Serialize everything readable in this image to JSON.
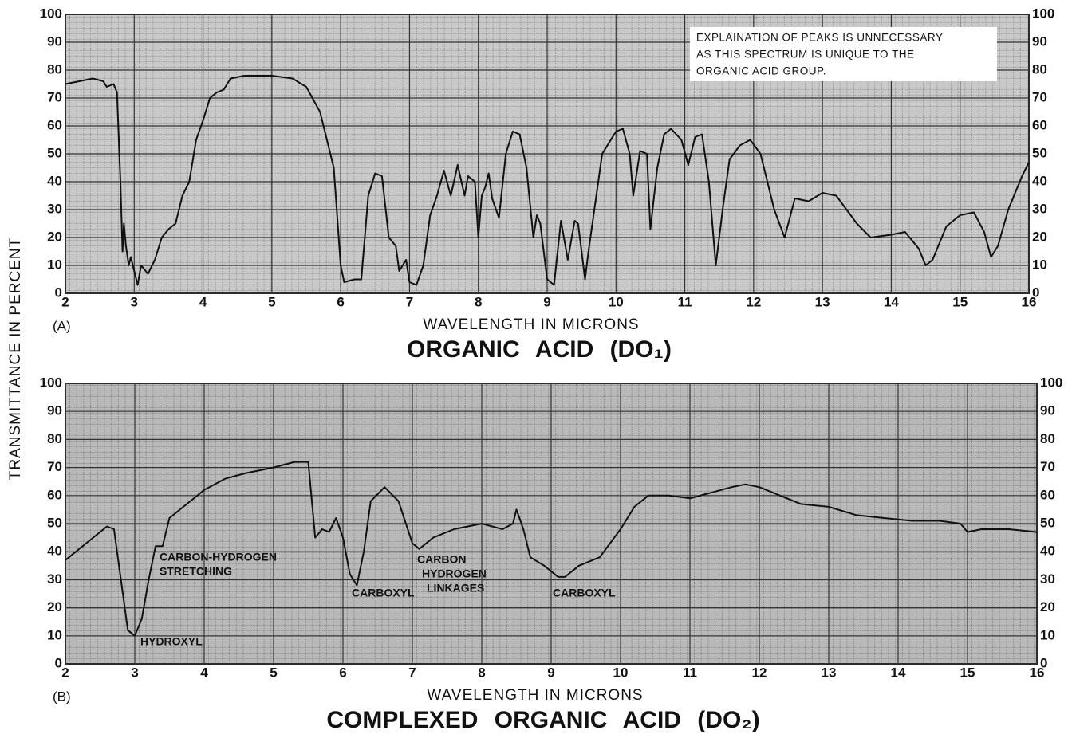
{
  "chart_data": [
    {
      "type": "line",
      "panel_label": "(A)",
      "title": "ORGANIC ACID (DO₁)",
      "ylabel": "TRANSMITTANCE IN PERCENT",
      "xlabel": "WAVELENGTH IN MICRONS",
      "xlim": [
        2,
        16
      ],
      "ylim": [
        0,
        100
      ],
      "xticks": [
        2,
        3,
        4,
        5,
        6,
        7,
        8,
        9,
        10,
        11,
        12,
        13,
        14,
        15,
        16
      ],
      "yticks": [
        0,
        10,
        20,
        30,
        40,
        50,
        60,
        70,
        80,
        90,
        100
      ],
      "grid": true,
      "color": "#111111",
      "annotation": [
        "EXPLAINATION OF PEAKS IS UNNECESSARY",
        "AS THIS SPECTRUM IS UNIQUE TO THE",
        "ORGANIC ACID GROUP."
      ],
      "x": [
        2.0,
        2.2,
        2.4,
        2.55,
        2.6,
        2.7,
        2.75,
        2.8,
        2.83,
        2.85,
        2.88,
        2.92,
        2.95,
        3.0,
        3.05,
        3.1,
        3.2,
        3.3,
        3.4,
        3.5,
        3.6,
        3.7,
        3.8,
        3.9,
        4.0,
        4.1,
        4.2,
        4.3,
        4.4,
        4.6,
        4.8,
        5.0,
        5.3,
        5.5,
        5.7,
        5.9,
        6.0,
        6.05,
        6.2,
        6.3,
        6.4,
        6.5,
        6.6,
        6.7,
        6.8,
        6.85,
        6.95,
        7.0,
        7.1,
        7.2,
        7.3,
        7.4,
        7.5,
        7.6,
        7.7,
        7.8,
        7.85,
        7.95,
        8.0,
        8.05,
        8.1,
        8.15,
        8.2,
        8.3,
        8.4,
        8.5,
        8.6,
        8.7,
        8.8,
        8.85,
        8.9,
        9.0,
        9.1,
        9.2,
        9.3,
        9.4,
        9.45,
        9.55,
        9.6,
        9.8,
        10.0,
        10.1,
        10.2,
        10.25,
        10.35,
        10.45,
        10.5,
        10.6,
        10.7,
        10.8,
        10.95,
        11.05,
        11.15,
        11.25,
        11.35,
        11.45,
        11.55,
        11.65,
        11.8,
        11.95,
        12.1,
        12.3,
        12.45,
        12.6,
        12.8,
        13.0,
        13.2,
        13.5,
        13.7,
        14.0,
        14.2,
        14.4,
        14.5,
        14.6,
        14.8,
        15.0,
        15.2,
        15.35,
        15.45,
        15.55,
        15.7,
        15.9,
        16.0
      ],
      "values": [
        75,
        76,
        77,
        76,
        74,
        75,
        72,
        40,
        15,
        25,
        17,
        10,
        13,
        8,
        3,
        10,
        7,
        12,
        20,
        23,
        25,
        35,
        40,
        55,
        62,
        70,
        72,
        73,
        77,
        78,
        78,
        78,
        77,
        74,
        65,
        45,
        10,
        4,
        5,
        5,
        35,
        43,
        42,
        20,
        17,
        8,
        12,
        4,
        3,
        10,
        28,
        35,
        44,
        35,
        46,
        35,
        42,
        40,
        20,
        35,
        38,
        43,
        34,
        27,
        50,
        58,
        57,
        45,
        20,
        28,
        25,
        5,
        3,
        26,
        12,
        26,
        25,
        5,
        15,
        50,
        58,
        59,
        50,
        35,
        51,
        50,
        23,
        45,
        57,
        59,
        55,
        46,
        56,
        57,
        40,
        10,
        30,
        48,
        53,
        55,
        50,
        30,
        20,
        34,
        33,
        36,
        35,
        25,
        20,
        21,
        22,
        16,
        10,
        12,
        24,
        28,
        29,
        22,
        13,
        17,
        30,
        42,
        47
      ]
    },
    {
      "type": "line",
      "panel_label": "(B)",
      "title": "COMPLEXED ORGANIC ACID (DO₂)",
      "xlabel": "WAVELENGTH IN MICRONS",
      "xlim": [
        2,
        16
      ],
      "ylim": [
        0,
        100
      ],
      "xticks": [
        2,
        3,
        4,
        5,
        6,
        7,
        8,
        9,
        10,
        11,
        12,
        13,
        14,
        15,
        16
      ],
      "yticks": [
        0,
        10,
        20,
        30,
        40,
        50,
        60,
        70,
        80,
        90,
        100
      ],
      "grid": true,
      "color": "#111111",
      "annotations": [
        [
          "CARBON-HYDROGEN",
          "STRETCHING"
        ],
        [
          "HYDROXYL"
        ],
        [
          "CARBOXYL"
        ],
        [
          "CARBON",
          "HYDROGEN",
          "LINKAGES"
        ],
        [
          "CARBOXYL"
        ]
      ],
      "x": [
        2.0,
        2.3,
        2.6,
        2.7,
        2.8,
        2.9,
        3.0,
        3.1,
        3.2,
        3.3,
        3.4,
        3.5,
        3.7,
        4.0,
        4.3,
        4.6,
        5.0,
        5.3,
        5.5,
        5.6,
        5.7,
        5.8,
        5.9,
        6.0,
        6.1,
        6.2,
        6.3,
        6.4,
        6.6,
        6.8,
        7.0,
        7.1,
        7.3,
        7.6,
        8.0,
        8.3,
        8.45,
        8.5,
        8.6,
        8.7,
        8.9,
        9.1,
        9.2,
        9.4,
        9.7,
        10.0,
        10.2,
        10.4,
        10.7,
        11.0,
        11.3,
        11.6,
        11.8,
        12.0,
        12.3,
        12.6,
        13.0,
        13.4,
        13.8,
        14.2,
        14.6,
        14.9,
        15.0,
        15.2,
        15.6,
        16.0
      ],
      "values": [
        37,
        43,
        49,
        48,
        30,
        12,
        10,
        16,
        30,
        42,
        42,
        52,
        56,
        62,
        66,
        68,
        70,
        72,
        72,
        45,
        48,
        47,
        52,
        45,
        32,
        28,
        40,
        58,
        63,
        58,
        43,
        41,
        45,
        48,
        50,
        48,
        50,
        55,
        48,
        38,
        35,
        31,
        31,
        35,
        38,
        48,
        56,
        60,
        60,
        59,
        61,
        63,
        64,
        63,
        60,
        57,
        56,
        53,
        52,
        51,
        51,
        50,
        47,
        48,
        48,
        47
      ]
    }
  ]
}
